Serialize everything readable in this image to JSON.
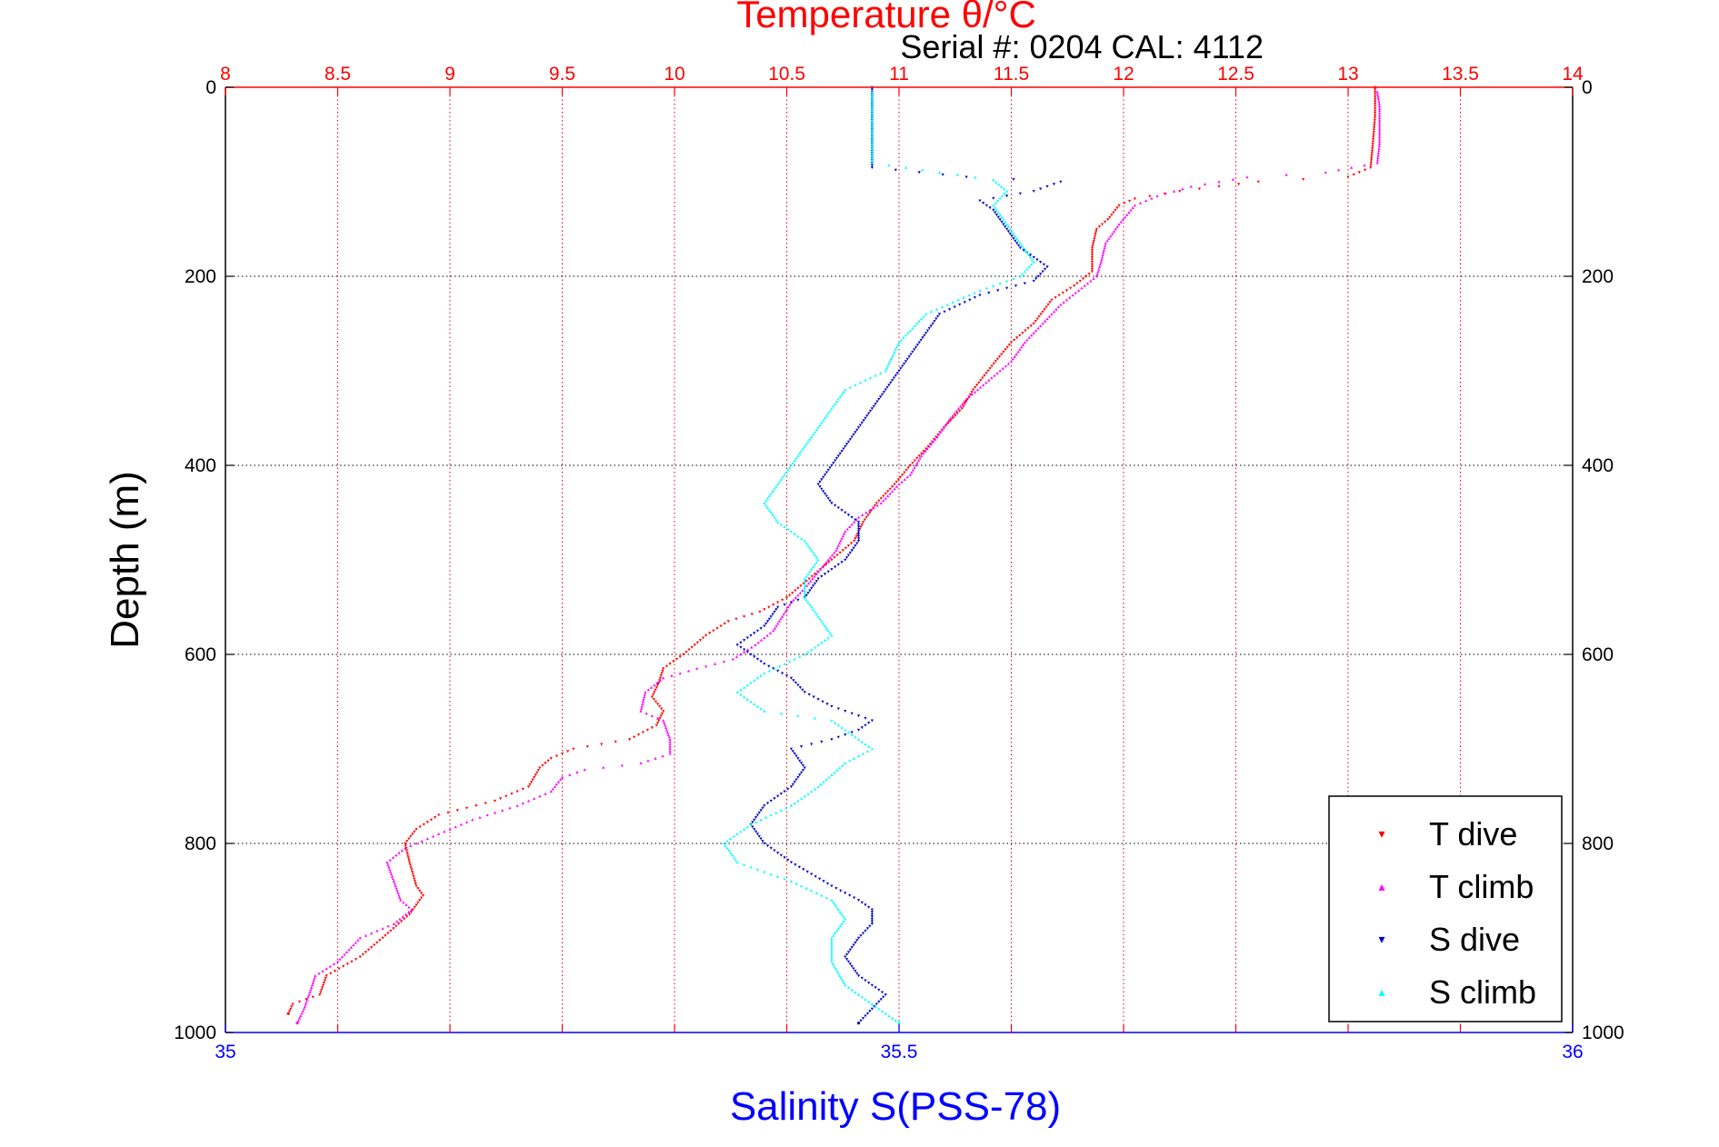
{
  "chart_data": {
    "type": "scatter",
    "title": "Temperature θ/°C",
    "annotation": "Serial #: 0204  CAL: 4112",
    "ylabel": "Depth (m)",
    "xlabel_bottom": "Salinity S(PSS-78)",
    "y_reversed": true,
    "ylim": [
      0,
      1000
    ],
    "y_ticks": [
      0,
      200,
      400,
      600,
      800,
      1000
    ],
    "x_top": {
      "lim": [
        8,
        14
      ],
      "ticks": [
        8,
        8.5,
        9,
        9.5,
        10,
        10.5,
        11,
        11.5,
        12,
        12.5,
        13,
        13.5,
        14
      ]
    },
    "x_bottom": {
      "lim": [
        35,
        36
      ],
      "ticks": [
        35,
        35.5,
        36
      ]
    },
    "grid": true,
    "legend_position": "bottom-right",
    "colors": {
      "temperature_axis": "#ff0000",
      "salinity_axis": "#0000ff",
      "t_dive": "#ff0000",
      "t_climb": "#ff00ff",
      "s_dive": "#0000cc",
      "s_climb": "#00ffff"
    },
    "series": [
      {
        "name": "T dive",
        "axis": "top",
        "marker": "▾",
        "points": [
          [
            13.12,
            0
          ],
          [
            13.12,
            30
          ],
          [
            13.11,
            60
          ],
          [
            13.1,
            85
          ],
          [
            13.0,
            95
          ],
          [
            12.6,
            100
          ],
          [
            12.25,
            110
          ],
          [
            12.05,
            118
          ],
          [
            11.98,
            125
          ],
          [
            11.93,
            140
          ],
          [
            11.88,
            150
          ],
          [
            11.86,
            170
          ],
          [
            11.86,
            195
          ],
          [
            11.78,
            210
          ],
          [
            11.68,
            225
          ],
          [
            11.6,
            250
          ],
          [
            11.5,
            270
          ],
          [
            11.43,
            290
          ],
          [
            11.33,
            320
          ],
          [
            11.28,
            340
          ],
          [
            11.2,
            360
          ],
          [
            11.13,
            380
          ],
          [
            11.05,
            400
          ],
          [
            10.98,
            420
          ],
          [
            10.9,
            440
          ],
          [
            10.84,
            460
          ],
          [
            10.8,
            480
          ],
          [
            10.7,
            500
          ],
          [
            10.6,
            520
          ],
          [
            10.5,
            540
          ],
          [
            10.38,
            555
          ],
          [
            10.24,
            565
          ],
          [
            10.14,
            580
          ],
          [
            10.04,
            600
          ],
          [
            9.95,
            615
          ],
          [
            9.93,
            630
          ],
          [
            9.9,
            645
          ],
          [
            9.95,
            660
          ],
          [
            9.92,
            675
          ],
          [
            9.8,
            690
          ],
          [
            9.55,
            700
          ],
          [
            9.45,
            710
          ],
          [
            9.4,
            720
          ],
          [
            9.35,
            740
          ],
          [
            9.2,
            755
          ],
          [
            8.95,
            770
          ],
          [
            8.85,
            785
          ],
          [
            8.8,
            800
          ],
          [
            8.82,
            820
          ],
          [
            8.85,
            845
          ],
          [
            8.88,
            855
          ],
          [
            8.82,
            875
          ],
          [
            8.7,
            900
          ],
          [
            8.6,
            920
          ],
          [
            8.45,
            940
          ],
          [
            8.42,
            960
          ],
          [
            8.3,
            970
          ],
          [
            8.28,
            980
          ]
        ]
      },
      {
        "name": "T climb",
        "axis": "top",
        "marker": "▴",
        "points": [
          [
            13.13,
            5
          ],
          [
            13.14,
            20
          ],
          [
            13.14,
            40
          ],
          [
            13.14,
            60
          ],
          [
            13.13,
            80
          ],
          [
            12.9,
            90
          ],
          [
            12.55,
            95
          ],
          [
            12.3,
            105
          ],
          [
            12.15,
            115
          ],
          [
            12.05,
            125
          ],
          [
            11.98,
            145
          ],
          [
            11.92,
            165
          ],
          [
            11.9,
            185
          ],
          [
            11.88,
            200
          ],
          [
            11.8,
            215
          ],
          [
            11.72,
            230
          ],
          [
            11.64,
            250
          ],
          [
            11.56,
            270
          ],
          [
            11.5,
            290
          ],
          [
            11.4,
            310
          ],
          [
            11.3,
            330
          ],
          [
            11.23,
            350
          ],
          [
            11.17,
            370
          ],
          [
            11.1,
            390
          ],
          [
            11.05,
            410
          ],
          [
            11.0,
            420
          ],
          [
            10.92,
            440
          ],
          [
            10.82,
            455
          ],
          [
            10.76,
            470
          ],
          [
            10.72,
            490
          ],
          [
            10.65,
            510
          ],
          [
            10.58,
            530
          ],
          [
            10.52,
            545
          ],
          [
            10.48,
            560
          ],
          [
            10.44,
            575
          ],
          [
            10.36,
            590
          ],
          [
            10.26,
            605
          ],
          [
            10.1,
            615
          ],
          [
            9.95,
            625
          ],
          [
            9.87,
            640
          ],
          [
            9.85,
            660
          ],
          [
            9.95,
            670
          ],
          [
            9.98,
            690
          ],
          [
            9.98,
            705
          ],
          [
            9.85,
            715
          ],
          [
            9.6,
            722
          ],
          [
            9.5,
            730
          ],
          [
            9.45,
            745
          ],
          [
            9.3,
            760
          ],
          [
            9.1,
            775
          ],
          [
            8.95,
            790
          ],
          [
            8.8,
            805
          ],
          [
            8.72,
            820
          ],
          [
            8.75,
            840
          ],
          [
            8.78,
            860
          ],
          [
            8.83,
            870
          ],
          [
            8.75,
            885
          ],
          [
            8.6,
            900
          ],
          [
            8.5,
            925
          ],
          [
            8.4,
            940
          ],
          [
            8.38,
            955
          ],
          [
            8.35,
            975
          ],
          [
            8.32,
            990
          ]
        ]
      },
      {
        "name": "S dive",
        "axis": "bottom",
        "marker": "▾",
        "points": [
          [
            35.48,
            0
          ],
          [
            35.48,
            30
          ],
          [
            35.48,
            60
          ],
          [
            35.48,
            85
          ],
          [
            35.55,
            95
          ],
          [
            35.62,
            100
          ],
          [
            35.6,
            110
          ],
          [
            35.56,
            120
          ],
          [
            35.57,
            130
          ],
          [
            35.58,
            150
          ],
          [
            35.59,
            170
          ],
          [
            35.61,
            190
          ],
          [
            35.6,
            205
          ],
          [
            35.56,
            220
          ],
          [
            35.53,
            240
          ],
          [
            35.52,
            260
          ],
          [
            35.51,
            280
          ],
          [
            35.5,
            300
          ],
          [
            35.49,
            320
          ],
          [
            35.48,
            340
          ],
          [
            35.47,
            360
          ],
          [
            35.46,
            380
          ],
          [
            35.45,
            400
          ],
          [
            35.44,
            420
          ],
          [
            35.45,
            440
          ],
          [
            35.47,
            460
          ],
          [
            35.47,
            480
          ],
          [
            35.46,
            500
          ],
          [
            35.44,
            520
          ],
          [
            35.43,
            540
          ],
          [
            35.41,
            550
          ],
          [
            35.4,
            570
          ],
          [
            35.38,
            590
          ],
          [
            35.4,
            610
          ],
          [
            35.42,
            625
          ],
          [
            35.43,
            640
          ],
          [
            35.45,
            655
          ],
          [
            35.48,
            670
          ],
          [
            35.47,
            680
          ],
          [
            35.45,
            690
          ],
          [
            35.42,
            700
          ],
          [
            35.43,
            720
          ],
          [
            35.42,
            740
          ],
          [
            35.4,
            760
          ],
          [
            35.39,
            780
          ],
          [
            35.4,
            800
          ],
          [
            35.42,
            820
          ],
          [
            35.45,
            845
          ],
          [
            35.47,
            860
          ],
          [
            35.48,
            870
          ],
          [
            35.48,
            885
          ],
          [
            35.47,
            900
          ],
          [
            35.46,
            920
          ],
          [
            35.47,
            940
          ],
          [
            35.49,
            960
          ],
          [
            35.48,
            975
          ],
          [
            35.47,
            990
          ]
        ]
      },
      {
        "name": "S climb",
        "axis": "bottom",
        "marker": "▴",
        "points": [
          [
            35.48,
            5
          ],
          [
            35.48,
            40
          ],
          [
            35.48,
            80
          ],
          [
            35.53,
            90
          ],
          [
            35.57,
            98
          ],
          [
            35.58,
            110
          ],
          [
            35.57,
            125
          ],
          [
            35.58,
            145
          ],
          [
            35.59,
            165
          ],
          [
            35.6,
            185
          ],
          [
            35.59,
            200
          ],
          [
            35.56,
            215
          ],
          [
            35.52,
            240
          ],
          [
            35.5,
            270
          ],
          [
            35.49,
            300
          ],
          [
            35.46,
            320
          ],
          [
            35.45,
            340
          ],
          [
            35.44,
            360
          ],
          [
            35.43,
            380
          ],
          [
            35.42,
            400
          ],
          [
            35.41,
            420
          ],
          [
            35.4,
            440
          ],
          [
            35.41,
            460
          ],
          [
            35.43,
            480
          ],
          [
            35.44,
            500
          ],
          [
            35.43,
            520
          ],
          [
            35.43,
            540
          ],
          [
            35.44,
            560
          ],
          [
            35.45,
            580
          ],
          [
            35.43,
            600
          ],
          [
            35.4,
            620
          ],
          [
            35.38,
            640
          ],
          [
            35.4,
            660
          ],
          [
            35.45,
            670
          ],
          [
            35.47,
            690
          ],
          [
            35.48,
            700
          ],
          [
            35.46,
            715
          ],
          [
            35.44,
            740
          ],
          [
            35.42,
            760
          ],
          [
            35.39,
            780
          ],
          [
            35.37,
            800
          ],
          [
            35.38,
            820
          ],
          [
            35.42,
            840
          ],
          [
            35.45,
            860
          ],
          [
            35.46,
            880
          ],
          [
            35.45,
            900
          ],
          [
            35.45,
            925
          ],
          [
            35.46,
            950
          ],
          [
            35.48,
            970
          ],
          [
            35.5,
            990
          ]
        ]
      }
    ]
  }
}
